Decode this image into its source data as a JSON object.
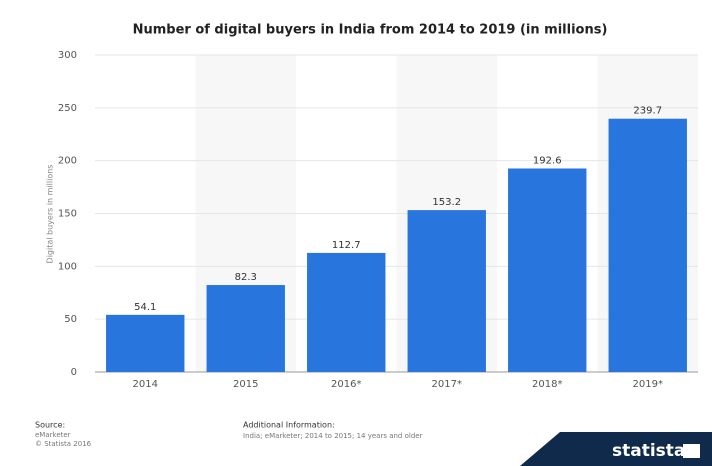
{
  "chart_data": {
    "type": "bar",
    "title": "Number of digital buyers in India from 2014 to 2019 (in millions)",
    "y_label": "Digital buyers in millions",
    "categories": [
      "2014",
      "2015",
      "2016*",
      "2017*",
      "2018*",
      "2019*"
    ],
    "values": [
      54.1,
      82.3,
      112.7,
      153.2,
      192.6,
      239.7
    ],
    "color": "#2876dd",
    "ylim": [
      0,
      300
    ],
    "yticks": [
      0,
      50,
      100,
      150,
      200,
      250,
      300
    ],
    "grid": true
  },
  "footer": {
    "source_label": "Source:",
    "source": "eMarketer",
    "copyright": "© Statista 2016",
    "additional_label": "Additional Information:",
    "additional": "India; eMarketer; 2014 to 2015; 14 years and older",
    "logo": "statista"
  }
}
